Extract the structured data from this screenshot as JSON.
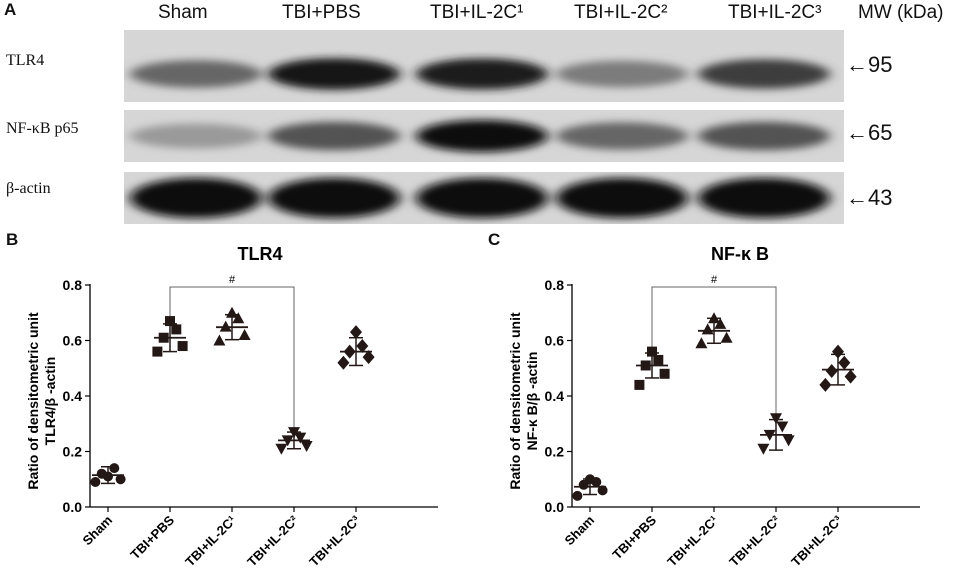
{
  "panel_a": {
    "letter": "A",
    "lanes": [
      "Sham",
      "TBI+PBS",
      "TBI+IL-2C¹",
      "TBI+IL-2C²",
      "TBI+IL-2C³"
    ],
    "mw_header": "MW (kDa)",
    "rows": [
      {
        "label": "TLR4",
        "marker": "←95",
        "intensity": [
          0.55,
          0.95,
          0.9,
          0.45,
          0.75
        ]
      },
      {
        "label": "NF-κB p65",
        "marker": "←65",
        "intensity": [
          0.3,
          0.65,
          1.0,
          0.55,
          0.65
        ]
      },
      {
        "label": "β-actin",
        "marker": "←43",
        "intensity": [
          1.0,
          1.0,
          1.0,
          1.0,
          1.0
        ]
      }
    ]
  },
  "chart_data": [
    {
      "panel": "B",
      "type": "scatter",
      "title": "TLR4",
      "ylabel_line1": "Ratio of densitometric unit",
      "ylabel_line2": "TLR4/β -actin",
      "ylim": [
        0.0,
        0.8
      ],
      "yticks": [
        "0.0",
        "0.2",
        "0.4",
        "0.6",
        "0.8"
      ],
      "categories": [
        "Sham",
        "TBI+PBS",
        "TBI+IL-2C¹",
        "TBI+IL-2C²",
        "TBI+IL-2C³"
      ],
      "markers": [
        "circle",
        "square",
        "triangle-up",
        "triangle-down",
        "diamond"
      ],
      "points": [
        [
          0.09,
          0.1,
          0.12,
          0.14,
          0.11
        ],
        [
          0.56,
          0.58,
          0.61,
          0.64,
          0.67
        ],
        [
          0.6,
          0.62,
          0.65,
          0.68,
          0.7
        ],
        [
          0.21,
          0.22,
          0.24,
          0.25,
          0.27
        ],
        [
          0.52,
          0.54,
          0.56,
          0.58,
          0.63
        ]
      ],
      "mean": [
        0.115,
        0.61,
        0.648,
        0.24,
        0.56
      ],
      "sd": [
        0.03,
        0.05,
        0.045,
        0.03,
        0.05
      ],
      "significance": {
        "from": 1,
        "to": 3,
        "label": "#"
      }
    },
    {
      "panel": "C",
      "type": "scatter",
      "title": "NF-κ B",
      "ylabel_line1": "Ratio of densitometric unit",
      "ylabel_line2": "NF-κ B/β -actin",
      "ylim": [
        0.0,
        0.8
      ],
      "yticks": [
        "0.0",
        "0.2",
        "0.4",
        "0.6",
        "0.8"
      ],
      "categories": [
        "Sham",
        "TBI+PBS",
        "TBI+IL-2C¹",
        "TBI+IL-2C²",
        "TBI+IL-2C³"
      ],
      "markers": [
        "circle",
        "square",
        "triangle-up",
        "triangle-down",
        "diamond"
      ],
      "points": [
        [
          0.04,
          0.06,
          0.08,
          0.09,
          0.1
        ],
        [
          0.44,
          0.48,
          0.51,
          0.53,
          0.56
        ],
        [
          0.59,
          0.61,
          0.64,
          0.66,
          0.68
        ],
        [
          0.21,
          0.24,
          0.26,
          0.29,
          0.32
        ],
        [
          0.44,
          0.47,
          0.49,
          0.52,
          0.56
        ]
      ],
      "mean": [
        0.073,
        0.51,
        0.635,
        0.26,
        0.495
      ],
      "sd": [
        0.028,
        0.045,
        0.045,
        0.055,
        0.055
      ],
      "significance": {
        "from": 1,
        "to": 3,
        "label": "#"
      }
    }
  ]
}
